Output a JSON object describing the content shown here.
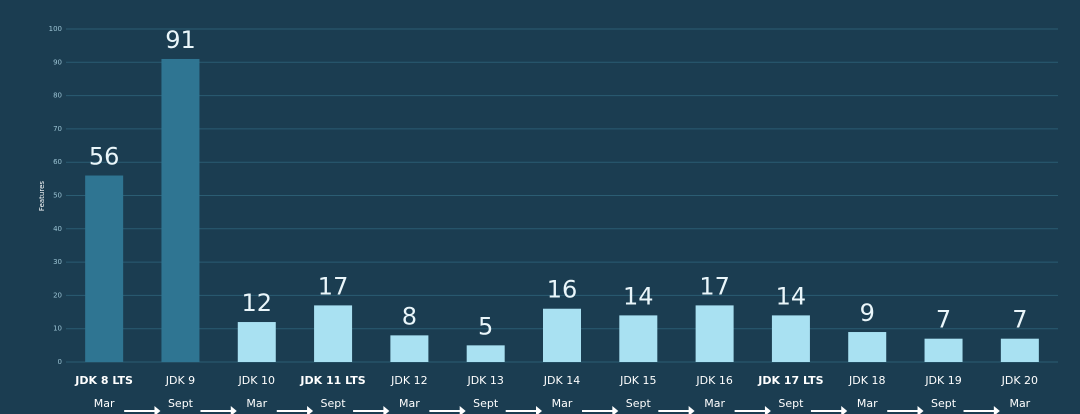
{
  "chart_data": {
    "type": "bar",
    "y_label": "Features",
    "categories": [
      "JDK 8 LTS",
      "JDK 9",
      "JDK 10",
      "JDK 11 LTS",
      "JDK 12",
      "JDK 13",
      "JDK 14",
      "JDK 15",
      "JDK 16",
      "JDK 17 LTS",
      "JDK 18",
      "JDK 19",
      "JDK 20"
    ],
    "release_months": [
      "Mar",
      "Sept",
      "Mar",
      "Sept",
      "Mar",
      "Sept",
      "Mar",
      "Sept",
      "Mar",
      "Sept",
      "Mar",
      "Sept",
      "Mar"
    ],
    "values": [
      56,
      91,
      12,
      17,
      8,
      5,
      16,
      14,
      17,
      14,
      9,
      7,
      7
    ],
    "colors": [
      "#2f7592",
      "#2f7592",
      "#a9e1f2",
      "#a9e1f2",
      "#a9e1f2",
      "#a9e1f2",
      "#a9e1f2",
      "#a9e1f2",
      "#a9e1f2",
      "#a9e1f2",
      "#a9e1f2",
      "#a9e1f2",
      "#a9e1f2"
    ],
    "label_weights": [
      "bold",
      "normal",
      "normal",
      "bold",
      "normal",
      "normal",
      "normal",
      "normal",
      "normal",
      "bold",
      "normal",
      "normal",
      "normal"
    ],
    "ylim": [
      0,
      100
    ],
    "yticks": [
      0,
      10,
      20,
      30,
      40,
      50,
      60,
      70,
      80,
      90,
      100
    ],
    "grid": true
  }
}
